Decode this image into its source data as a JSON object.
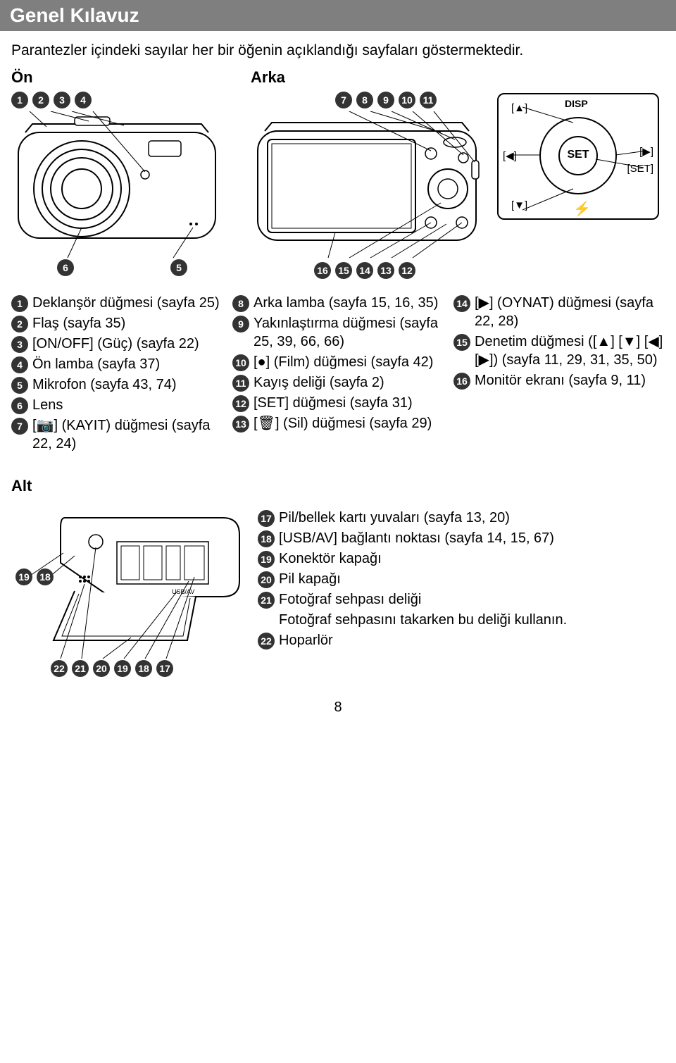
{
  "header": {
    "title": "Genel Kılavuz"
  },
  "intro": "Parantezler içindeki sayılar her bir öğenin açıklandığı sayfaları göstermektedir.",
  "views": {
    "front_label": "Ön",
    "back_label": "Arka"
  },
  "callouts": {
    "front_top": [
      "1",
      "2",
      "3",
      "4"
    ],
    "front_bottom": [
      "6",
      "5"
    ],
    "back_top": [
      "7",
      "8",
      "9",
      "10",
      "11"
    ],
    "back_bottom": [
      "16",
      "15",
      "14",
      "13",
      "12"
    ]
  },
  "controlpad": {
    "disp": "DISP",
    "set_center": "SET",
    "up": "[▲]",
    "left": "[◀]",
    "right": "[▶]",
    "down": "[▼]",
    "set_label": "[SET]"
  },
  "legend": {
    "col1": [
      {
        "n": "1",
        "t": "Deklanşör düğmesi (sayfa 25)"
      },
      {
        "n": "2",
        "t": "Flaş (sayfa 35)"
      },
      {
        "n": "3",
        "t": "[ON/OFF] (Güç) (sayfa 22)"
      },
      {
        "n": "4",
        "t": "Ön lamba (sayfa 37)"
      },
      {
        "n": "5",
        "t": "Mikrofon (sayfa 43, 74)"
      },
      {
        "n": "6",
        "t": "Lens"
      },
      {
        "n": "7",
        "t": "[📷] (KAYIT) düğmesi (sayfa 22, 24)"
      }
    ],
    "col2": [
      {
        "n": "8",
        "t": "Arka lamba (sayfa 15, 16, 35)"
      },
      {
        "n": "9",
        "t": "Yakınlaştırma düğmesi (sayfa 25, 39, 66, 66)"
      },
      {
        "n": "10",
        "t": "[●] (Film) düğmesi (sayfa 42)"
      },
      {
        "n": "11",
        "t": "Kayış deliği (sayfa 2)"
      },
      {
        "n": "12",
        "t": "[SET] düğmesi (sayfa 31)"
      },
      {
        "n": "13",
        "t": "[🗑] (Sil) düğmesi (sayfa 29)"
      }
    ],
    "col3": [
      {
        "n": "14",
        "t": "[▶] (OYNAT) düğmesi (sayfa 22, 28)"
      },
      {
        "n": "15",
        "t": "Denetim düğmesi ([▲] [▼] [◀] [▶]) (sayfa 11, 29, 31, 35, 50)"
      },
      {
        "n": "16",
        "t": "Monitör ekranı (sayfa 9, 11)"
      }
    ]
  },
  "alt": {
    "label": "Alt",
    "side_badges": [
      "19",
      "18"
    ],
    "bottom_badges": [
      "22",
      "21",
      "20",
      "19",
      "18",
      "17"
    ],
    "items": [
      {
        "n": "17",
        "t": "Pil/bellek kartı yuvaları (sayfa 13, 20)"
      },
      {
        "n": "18",
        "t": "[USB/AV] bağlantı noktası (sayfa 14, 15, 67)"
      },
      {
        "n": "19",
        "t": "Konektör kapağı"
      },
      {
        "n": "20",
        "t": "Pil kapağı"
      },
      {
        "n": "21",
        "t": "Fotoğraf sehpası deliği"
      }
    ],
    "note": "Fotoğraf sehpasını takarken bu deliği kullanın.",
    "last": {
      "n": "22",
      "t": "Hoparlör"
    }
  },
  "pagenum": "8",
  "colors": {
    "header_bg": "#7f7f7f",
    "badge_bg": "#333333",
    "line": "#000000"
  }
}
